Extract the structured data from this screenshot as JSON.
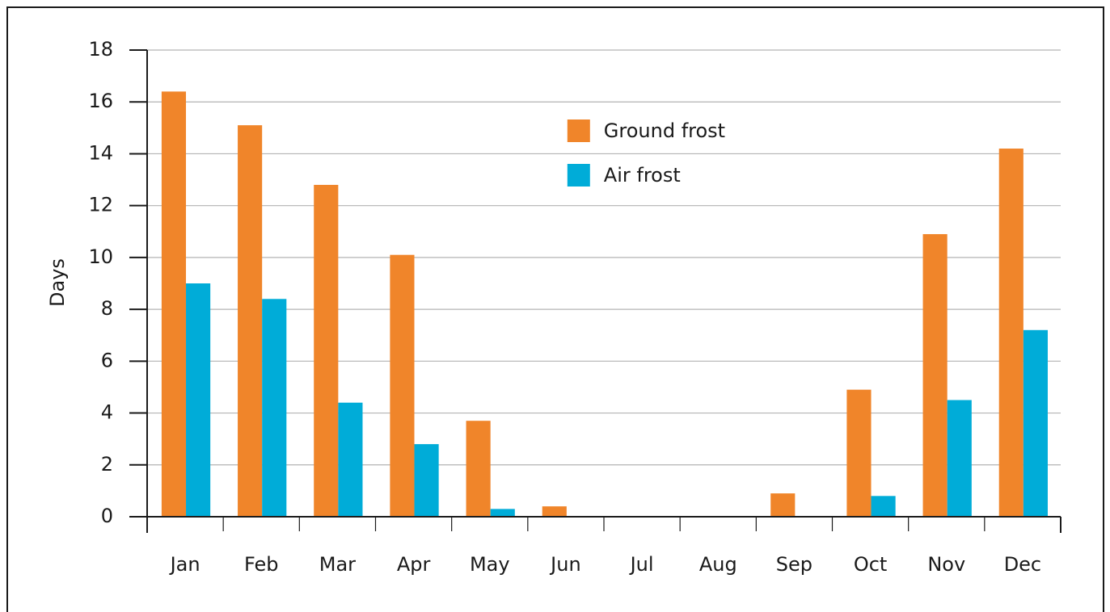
{
  "chart_data": {
    "type": "bar",
    "y_label": "Days",
    "categories": [
      "Jan",
      "Feb",
      "Mar",
      "Apr",
      "May",
      "Jun",
      "Jul",
      "Aug",
      "Sep",
      "Oct",
      "Nov",
      "Dec"
    ],
    "series": [
      {
        "name": "Ground frost",
        "color": "#f0852a",
        "values": [
          16.4,
          15.1,
          12.8,
          10.1,
          3.7,
          0.4,
          0,
          0,
          0.9,
          4.9,
          10.9,
          14.2
        ]
      },
      {
        "name": "Air frost",
        "color": "#00acd8",
        "values": [
          9.0,
          8.4,
          4.4,
          2.8,
          0.3,
          0,
          0,
          0,
          0,
          0.8,
          4.5,
          7.2
        ]
      }
    ],
    "ylim": [
      0,
      18
    ],
    "yticks": [
      0,
      2,
      4,
      6,
      8,
      10,
      12,
      14,
      16,
      18
    ],
    "grid": true,
    "legend": "upper center"
  }
}
